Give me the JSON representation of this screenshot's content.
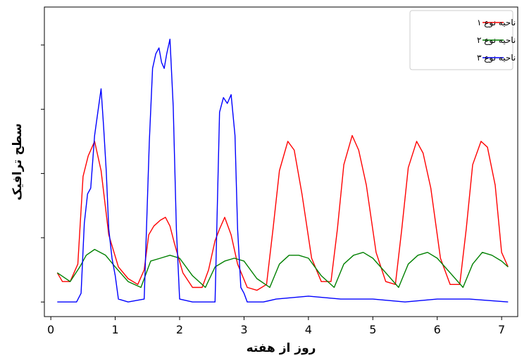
{
  "chart_data": {
    "type": "line",
    "title": "",
    "xlabel": "روز از هفته",
    "ylabel": "سطح ترافیک",
    "xlim": [
      -0.1,
      7.25
    ],
    "ylim": [
      0,
      1.06
    ],
    "x_ticks": [
      0,
      1,
      2,
      3,
      4,
      5,
      6,
      7
    ],
    "y_tick_values": [
      0.05,
      0.27,
      0.49,
      0.71,
      0.93
    ],
    "y_tick_labels_shown": false,
    "grid": false,
    "legend_position": "top-right",
    "series": [
      {
        "name": "ناحیه نوع ۱",
        "color": "#ff0000",
        "x": [
          0.1,
          0.18,
          0.3,
          0.42,
          0.5,
          0.58,
          0.68,
          0.78,
          0.9,
          1.05,
          1.2,
          1.35,
          1.45,
          1.52,
          1.6,
          1.7,
          1.78,
          1.85,
          1.92,
          2.05,
          2.2,
          2.35,
          2.45,
          2.55,
          2.62,
          2.7,
          2.8,
          2.9,
          3.05,
          3.2,
          3.35,
          3.45,
          3.55,
          3.68,
          3.78,
          3.9,
          4.05,
          4.2,
          4.35,
          4.45,
          4.55,
          4.68,
          4.78,
          4.9,
          5.05,
          5.2,
          5.35,
          5.45,
          5.55,
          5.68,
          5.78,
          5.9,
          6.05,
          6.2,
          6.35,
          6.45,
          6.55,
          6.68,
          6.78,
          6.9,
          7.0,
          7.1
        ],
        "y": [
          0.15,
          0.12,
          0.12,
          0.18,
          0.48,
          0.55,
          0.6,
          0.5,
          0.28,
          0.17,
          0.13,
          0.11,
          0.16,
          0.28,
          0.31,
          0.33,
          0.34,
          0.31,
          0.25,
          0.15,
          0.1,
          0.1,
          0.16,
          0.26,
          0.3,
          0.34,
          0.28,
          0.18,
          0.1,
          0.09,
          0.11,
          0.3,
          0.5,
          0.6,
          0.57,
          0.42,
          0.2,
          0.12,
          0.12,
          0.3,
          0.52,
          0.62,
          0.57,
          0.45,
          0.22,
          0.12,
          0.11,
          0.3,
          0.51,
          0.6,
          0.56,
          0.44,
          0.2,
          0.11,
          0.11,
          0.3,
          0.52,
          0.6,
          0.58,
          0.45,
          0.22,
          0.17
        ]
      },
      {
        "name": "ناحیه نوع ۲",
        "color": "#008000",
        "x": [
          0.1,
          0.3,
          0.45,
          0.55,
          0.68,
          0.85,
          1.0,
          1.2,
          1.4,
          1.55,
          1.7,
          1.85,
          2.0,
          2.2,
          2.4,
          2.55,
          2.7,
          2.85,
          3.0,
          3.2,
          3.4,
          3.55,
          3.7,
          3.85,
          4.0,
          4.2,
          4.4,
          4.55,
          4.7,
          4.85,
          5.0,
          5.2,
          5.4,
          5.55,
          5.7,
          5.85,
          6.0,
          6.2,
          6.4,
          6.55,
          6.7,
          6.85,
          7.0,
          7.1
        ],
        "y": [
          0.15,
          0.12,
          0.17,
          0.21,
          0.23,
          0.21,
          0.17,
          0.12,
          0.1,
          0.19,
          0.2,
          0.21,
          0.2,
          0.14,
          0.1,
          0.17,
          0.19,
          0.2,
          0.19,
          0.13,
          0.1,
          0.18,
          0.21,
          0.21,
          0.2,
          0.14,
          0.1,
          0.18,
          0.21,
          0.22,
          0.2,
          0.15,
          0.1,
          0.18,
          0.21,
          0.22,
          0.2,
          0.15,
          0.1,
          0.18,
          0.22,
          0.21,
          0.19,
          0.17
        ]
      },
      {
        "name": "ناحیه نوع ۳",
        "color": "#0000ff",
        "x": [
          0.1,
          0.4,
          0.47,
          0.52,
          0.57,
          0.62,
          0.68,
          0.73,
          0.78,
          0.82,
          0.86,
          0.9,
          0.95,
          1.0,
          1.05,
          1.2,
          1.45,
          1.53,
          1.58,
          1.63,
          1.68,
          1.72,
          1.76,
          1.8,
          1.85,
          1.9,
          1.95,
          2.0,
          2.2,
          2.55,
          2.62,
          2.68,
          2.74,
          2.8,
          2.86,
          2.9,
          2.95,
          3.0,
          3.05,
          3.1,
          3.3,
          3.5,
          4.0,
          4.5,
          5.0,
          5.5,
          6.0,
          6.5,
          7.1
        ],
        "y": [
          0.05,
          0.05,
          0.08,
          0.32,
          0.42,
          0.44,
          0.62,
          0.7,
          0.78,
          0.65,
          0.5,
          0.3,
          0.2,
          0.14,
          0.06,
          0.05,
          0.06,
          0.6,
          0.85,
          0.9,
          0.92,
          0.87,
          0.85,
          0.9,
          0.95,
          0.72,
          0.3,
          0.06,
          0.05,
          0.05,
          0.7,
          0.75,
          0.73,
          0.76,
          0.62,
          0.3,
          0.1,
          0.08,
          0.05,
          0.05,
          0.05,
          0.06,
          0.07,
          0.06,
          0.06,
          0.05,
          0.06,
          0.06,
          0.05
        ]
      }
    ]
  }
}
